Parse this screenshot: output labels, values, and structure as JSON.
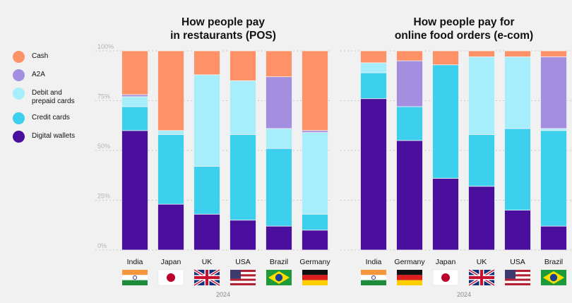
{
  "legend": {
    "items": [
      {
        "label": "Cash",
        "color": "#fe9266"
      },
      {
        "label": "A2A",
        "color": "#a38ee0"
      },
      {
        "label": "Debit and\nprepaid cards",
        "color": "#a7eefc"
      },
      {
        "label": "Credit cards",
        "color": "#3ccfee"
      },
      {
        "label": "Digital wallets",
        "color": "#4a0f9c"
      }
    ]
  },
  "chart_data": [
    {
      "type": "bar",
      "stacked": true,
      "title": "How people pay\nin restaurants (POS)",
      "year_label": "2024",
      "ylim": [
        0,
        100
      ],
      "yticks": [
        0,
        25,
        50,
        75,
        100
      ],
      "ytick_labels": [
        "0%",
        "25%",
        "50%",
        "75%",
        "100%"
      ],
      "categories": [
        "India",
        "Japan",
        "UK",
        "USA",
        "Brazil",
        "Germany"
      ],
      "series": [
        {
          "name": "Digital wallets",
          "values": [
            60,
            23,
            18,
            15,
            12,
            10
          ]
        },
        {
          "name": "Credit cards",
          "values": [
            12,
            35,
            24,
            43,
            39,
            8
          ]
        },
        {
          "name": "Debit and prepaid cards",
          "values": [
            5,
            2,
            46,
            27,
            10,
            41
          ]
        },
        {
          "name": "A2A",
          "values": [
            1,
            0,
            0,
            0,
            26,
            1
          ]
        },
        {
          "name": "Cash",
          "values": [
            22,
            40,
            12,
            15,
            13,
            40
          ]
        }
      ]
    },
    {
      "type": "bar",
      "stacked": true,
      "title": "How people pay for\nonline food orders (e-com)",
      "year_label": "2024",
      "ylim": [
        0,
        100
      ],
      "categories": [
        "India",
        "Germany",
        "Japan",
        "UK",
        "USA",
        "Brazil"
      ],
      "series": [
        {
          "name": "Digital wallets",
          "values": [
            76,
            55,
            36,
            32,
            20,
            12
          ]
        },
        {
          "name": "Credit cards",
          "values": [
            13,
            17,
            57,
            26,
            41,
            48
          ]
        },
        {
          "name": "Debit and prepaid cards",
          "values": [
            5,
            0,
            0,
            39,
            36,
            1
          ]
        },
        {
          "name": "A2A",
          "values": [
            0,
            23,
            0,
            0,
            0,
            36
          ]
        },
        {
          "name": "Cash",
          "values": [
            6,
            5,
            7,
            3,
            3,
            3
          ]
        }
      ]
    }
  ],
  "series_colors": {
    "Digital wallets": "#4a0f9c",
    "Credit cards": "#3ccfee",
    "Debit and prepaid cards": "#a7eefc",
    "A2A": "#a38ee0",
    "Cash": "#fe9266"
  }
}
